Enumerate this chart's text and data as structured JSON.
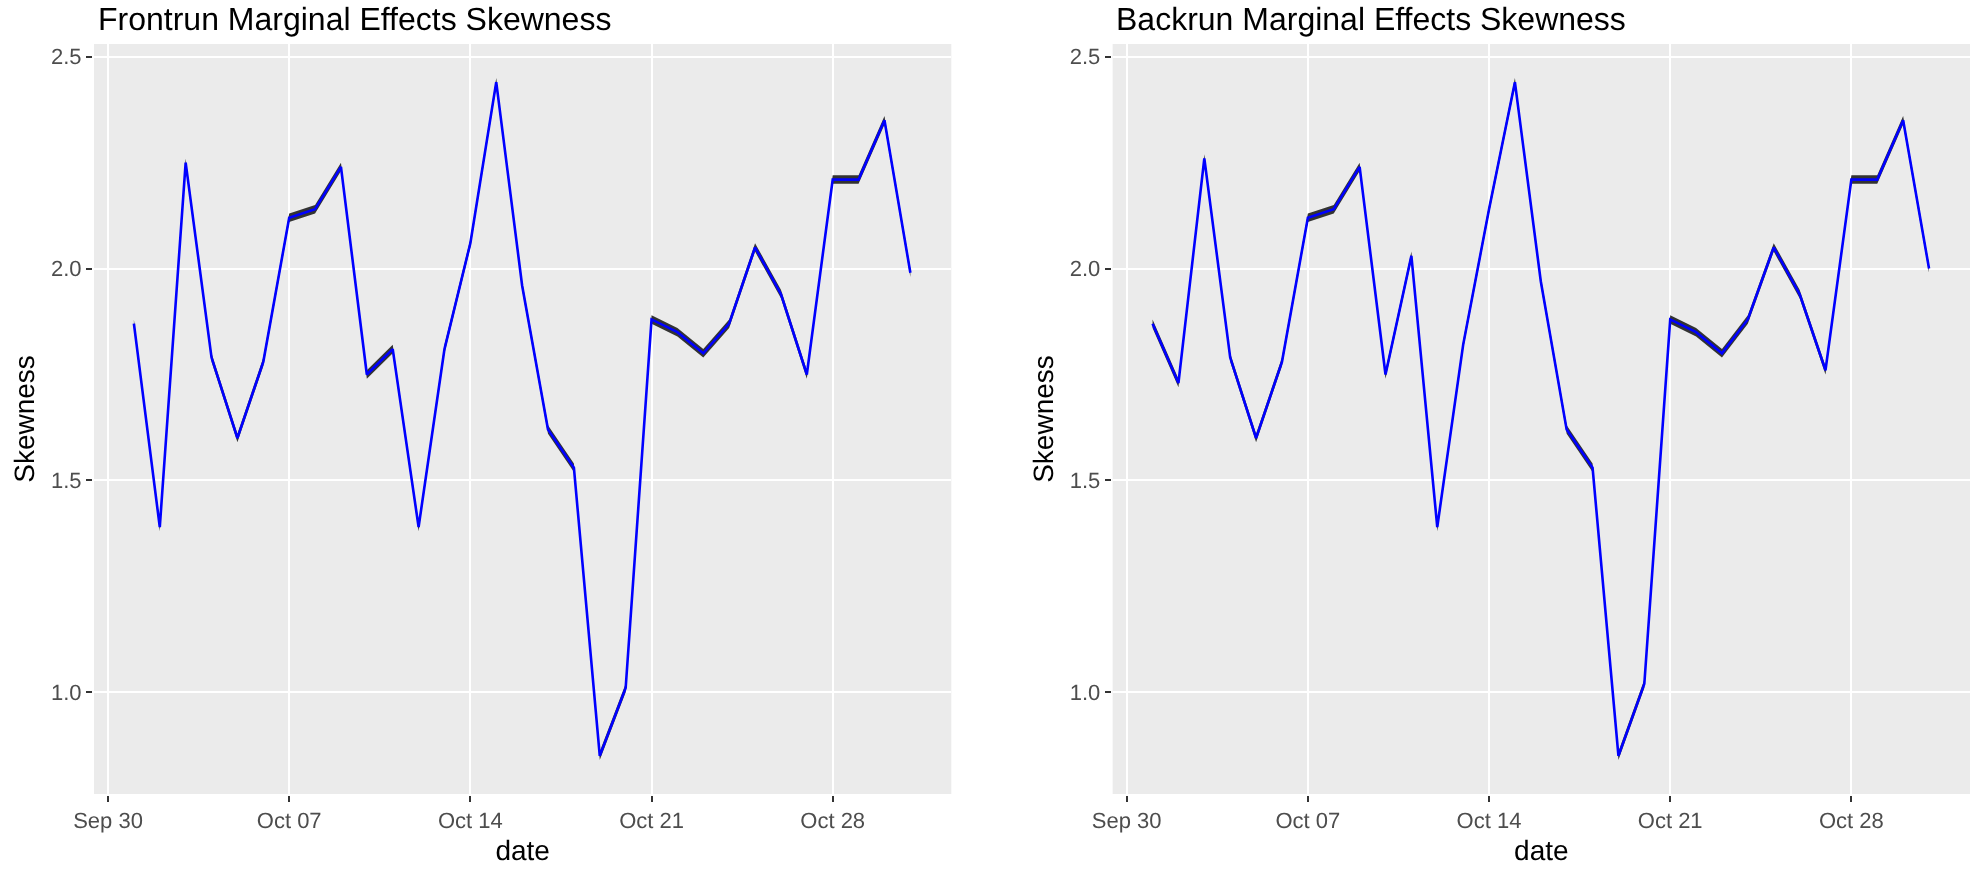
{
  "chart_data": [
    {
      "type": "line",
      "title": "Frontrun Marginal Effects Skewness",
      "xlabel": "date",
      "ylabel": "Skewness",
      "x": [
        "--10-01",
        "--10-02",
        "--10-03",
        "--10-04",
        "--10-05",
        "--10-06",
        "--10-07",
        "--10-08",
        "--10-09",
        "--10-10",
        "--10-11",
        "--10-12",
        "--10-13",
        "--10-14",
        "--10-15",
        "--10-16",
        "--10-17",
        "--10-18",
        "--10-19",
        "--10-20",
        "--10-21",
        "--10-22",
        "--10-23",
        "--10-24",
        "--10-25",
        "--10-26",
        "--10-27",
        "--10-28",
        "--10-29",
        "--10-30",
        "--10-31"
      ],
      "series": [
        {
          "color": "#0000ff",
          "values": [
            1.87,
            1.39,
            2.25,
            1.79,
            1.6,
            1.78,
            2.12,
            2.14,
            2.24,
            1.75,
            1.81,
            1.39,
            1.81,
            2.06,
            2.44,
            1.96,
            1.62,
            1.53,
            0.85,
            1.01,
            1.88,
            1.85,
            1.8,
            1.87,
            2.05,
            1.94,
            1.75,
            2.21,
            2.21,
            2.35,
            1.99
          ],
          "lower": [
            1.86,
            1.38,
            2.24,
            1.78,
            1.59,
            1.77,
            2.11,
            2.13,
            2.23,
            1.74,
            1.8,
            1.38,
            1.8,
            2.05,
            2.43,
            1.95,
            1.61,
            1.52,
            0.84,
            1.0,
            1.87,
            1.84,
            1.79,
            1.86,
            2.04,
            1.93,
            1.74,
            2.2,
            2.2,
            2.34,
            1.98
          ],
          "upper": [
            1.88,
            1.4,
            2.26,
            1.8,
            1.61,
            1.79,
            2.13,
            2.15,
            2.25,
            1.76,
            1.82,
            1.4,
            1.82,
            2.07,
            2.45,
            1.97,
            1.63,
            1.54,
            0.86,
            1.02,
            1.89,
            1.86,
            1.81,
            1.88,
            2.06,
            1.95,
            1.76,
            2.22,
            2.22,
            2.36,
            2.0
          ]
        }
      ],
      "xlim": [
        "--09-29T11:00",
        "--11-01T14:00"
      ],
      "xticks": [
        {
          "value": "--09-30",
          "label": "Sep 30"
        },
        {
          "value": "--10-07",
          "label": "Oct 07"
        },
        {
          "value": "--10-14",
          "label": "Oct 14"
        },
        {
          "value": "--10-21",
          "label": "Oct 21"
        },
        {
          "value": "--10-28",
          "label": "Oct 28"
        }
      ],
      "ylim": [
        0.76,
        2.53
      ],
      "yticks": [
        {
          "value": 1,
          "label": "1.0"
        },
        {
          "value": 1.5,
          "label": "1.5"
        },
        {
          "value": 2,
          "label": "2.0"
        },
        {
          "value": 2.5,
          "label": "2.5"
        }
      ],
      "grid": true,
      "line_style": "solid",
      "marker": "none"
    },
    {
      "type": "line",
      "title": "Backrun Marginal Effects Skewness",
      "xlabel": "date",
      "ylabel": "Skewness",
      "x": [
        "--10-01",
        "--10-02",
        "--10-03",
        "--10-04",
        "--10-05",
        "--10-06",
        "--10-07",
        "--10-08",
        "--10-09",
        "--10-10",
        "--10-11",
        "--10-12",
        "--10-13",
        "--10-14",
        "--10-15",
        "--10-16",
        "--10-17",
        "--10-18",
        "--10-19",
        "--10-20",
        "--10-21",
        "--10-22",
        "--10-23",
        "--10-24",
        "--10-25",
        "--10-26",
        "--10-27",
        "--10-28",
        "--10-29",
        "--10-30",
        "--10-31"
      ],
      "series": [
        {
          "color": "#0000ff",
          "values": [
            1.87,
            1.73,
            2.26,
            1.79,
            1.6,
            1.78,
            2.12,
            2.14,
            2.24,
            1.75,
            2.03,
            1.39,
            1.82,
            2.14,
            2.44,
            1.97,
            1.62,
            1.53,
            0.85,
            1.02,
            1.88,
            1.85,
            1.8,
            1.88,
            2.05,
            1.94,
            1.76,
            2.21,
            2.21,
            2.35,
            2.0
          ],
          "lower": [
            1.86,
            1.72,
            2.25,
            1.78,
            1.59,
            1.77,
            2.11,
            2.13,
            2.23,
            1.74,
            2.02,
            1.38,
            1.81,
            2.13,
            2.43,
            1.96,
            1.61,
            1.52,
            0.84,
            1.01,
            1.87,
            1.84,
            1.79,
            1.87,
            2.04,
            1.93,
            1.75,
            2.2,
            2.2,
            2.34,
            1.99
          ],
          "upper": [
            1.88,
            1.74,
            2.27,
            1.8,
            1.61,
            1.79,
            2.13,
            2.15,
            2.25,
            1.76,
            2.04,
            1.4,
            1.83,
            2.15,
            2.45,
            1.98,
            1.63,
            1.54,
            0.86,
            1.03,
            1.89,
            1.86,
            1.81,
            1.89,
            2.06,
            1.95,
            1.77,
            2.22,
            2.22,
            2.36,
            2.01
          ]
        }
      ],
      "xlim": [
        "--09-29T11:00",
        "--11-01T14:00"
      ],
      "xticks": [
        {
          "value": "--09-30",
          "label": "Sep 30"
        },
        {
          "value": "--10-07",
          "label": "Oct 07"
        },
        {
          "value": "--10-14",
          "label": "Oct 14"
        },
        {
          "value": "--10-21",
          "label": "Oct 21"
        },
        {
          "value": "--10-28",
          "label": "Oct 28"
        }
      ],
      "ylim": [
        0.76,
        2.53
      ],
      "yticks": [
        {
          "value": 1,
          "label": "1.0"
        },
        {
          "value": 1.5,
          "label": "1.5"
        },
        {
          "value": 2,
          "label": "2.0"
        },
        {
          "value": 2.5,
          "label": "2.5"
        }
      ],
      "grid": true,
      "line_style": "solid",
      "marker": "none"
    }
  ]
}
